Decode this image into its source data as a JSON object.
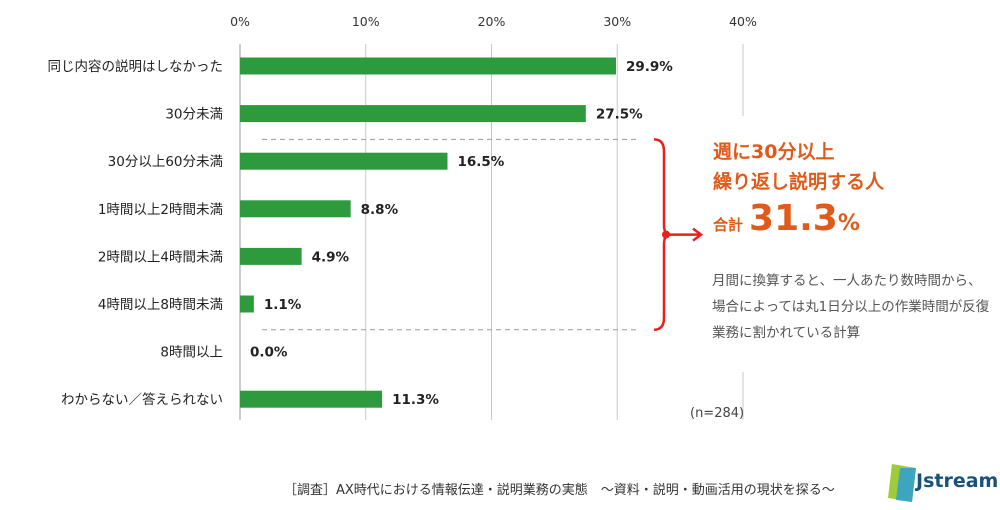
{
  "chart_data": {
    "type": "bar",
    "orientation": "horizontal",
    "categories": [
      "同じ内容の説明はしなかった",
      "30分未満",
      "30分以上60分未満",
      "1時間以上2時間未満",
      "2時間以上4時間未満",
      "4時間以上8時間未満",
      "8時間以上",
      "わからない／答えられない"
    ],
    "values": [
      29.9,
      27.5,
      16.5,
      8.8,
      4.9,
      1.1,
      0.0,
      11.3
    ],
    "value_labels": [
      "29.9%",
      "27.5%",
      "16.5%",
      "8.8%",
      "4.9%",
      "1.1%",
      "0.0%",
      "11.3%"
    ],
    "x_ticks": [
      0,
      10,
      20,
      30,
      40
    ],
    "x_tick_labels": [
      "0%",
      "10%",
      "20%",
      "30%",
      "40%"
    ],
    "xlim": [
      0,
      40
    ],
    "grid": true,
    "bar_color": "#2e9a3e",
    "bracket_range": [
      "30分以上60分未満",
      "4時間以上8時間未満"
    ]
  },
  "callout": {
    "title_line1": "週に30分以上",
    "title_line2": "繰り返し説明する人",
    "total_label": "合計",
    "total_value": "31.3",
    "total_unit": "%",
    "note": "月間に換算すると、一人あたり数時間から、場合によっては丸1日分以上の作業時間が反復業務に割かれている計算",
    "color": "#e05a1a",
    "bracket_color": "#e8201a"
  },
  "sample_size": "(n=284)",
  "footer": {
    "source": "［調査］AX時代における情報伝達・説明業務の実態　～資料・説明・動画活用の現状を探る～"
  },
  "logo": {
    "text": "Jstream",
    "icon": "jstream-logo-icon"
  }
}
